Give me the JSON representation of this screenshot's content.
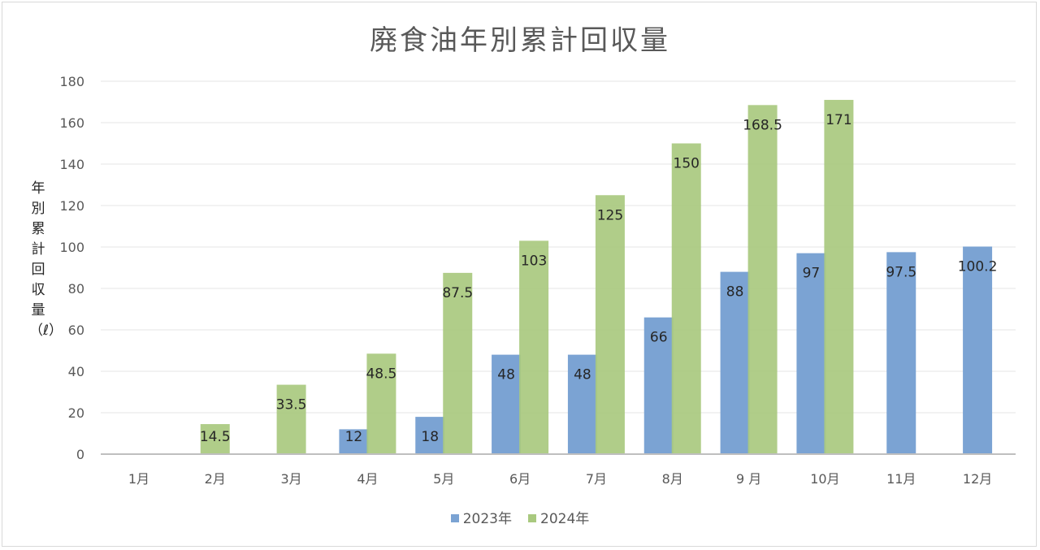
{
  "chart_data": {
    "type": "bar",
    "title": "廃食油年別累計回収量",
    "ylabel": "年別累計回収量（ℓ）",
    "xlabel": "",
    "categories": [
      "1月",
      "2月",
      "3月",
      "4月",
      "5月",
      "6月",
      "7月",
      "8月",
      "9 月",
      "10月",
      "11月",
      "12月"
    ],
    "ylim": [
      0,
      180
    ],
    "yticks": [
      0,
      20,
      40,
      60,
      80,
      100,
      120,
      140,
      160,
      180
    ],
    "grid": true,
    "legend": "bottom",
    "series": [
      {
        "name": "2023年",
        "color": "#7ba3d3",
        "values": [
          null,
          null,
          null,
          12,
          18,
          48,
          48,
          66,
          88,
          97,
          97.5,
          100.2
        ],
        "labels": [
          "",
          "",
          "",
          "12",
          "18",
          "48",
          "48",
          "66",
          "88",
          "97",
          "97.5",
          "100.2"
        ]
      },
      {
        "name": "2024年",
        "color": "#a9c97f",
        "values": [
          null,
          14.5,
          33.5,
          48.5,
          87.5,
          103,
          125,
          150,
          168.5,
          171,
          null,
          null
        ],
        "labels": [
          "",
          "14.5",
          "33.5",
          "48.5",
          "87.5",
          "103",
          "125",
          "150",
          "168.5",
          "171",
          "",
          ""
        ]
      }
    ]
  }
}
